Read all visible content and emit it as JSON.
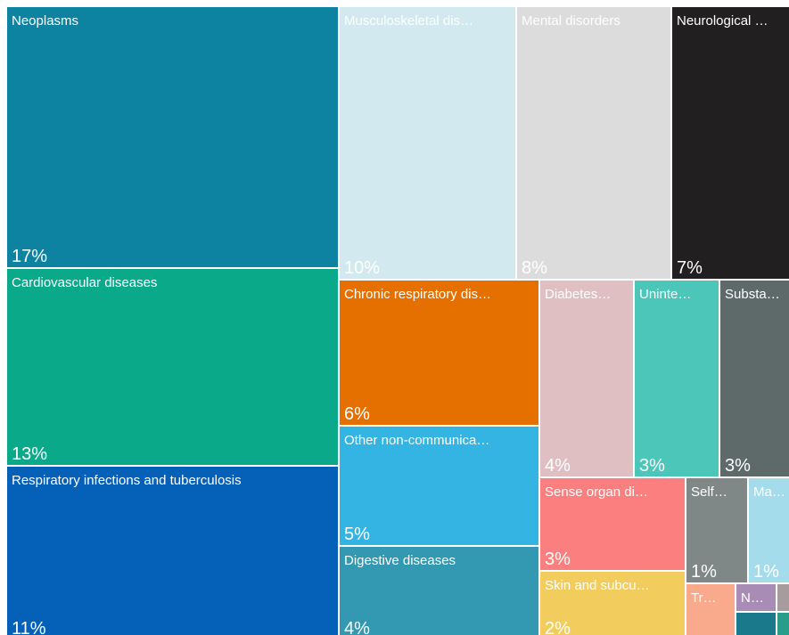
{
  "chart_data": {
    "type": "treemap",
    "categories": [
      "Neoplasms",
      "Cardiovascular diseases",
      "Respiratory infections and tuberculosis",
      "Musculoskeletal dis…",
      "Mental disorders",
      "Neurological …",
      "Chronic respiratory dis…",
      "Other non-communica…",
      "Digestive diseases",
      "Diabetes…",
      "Uninte…",
      "Substa…",
      "Sense organ di…",
      "Skin and subcu…",
      "Self…",
      "Ma…",
      "Tr…",
      "N…",
      null,
      null,
      null
    ],
    "values": [
      17,
      13,
      11,
      10,
      8,
      7,
      6,
      5,
      4,
      4,
      3,
      3,
      3,
      2,
      1,
      1,
      null,
      null,
      null,
      null,
      null
    ],
    "value_labels": [
      "17%",
      "13%",
      "11%",
      "10%",
      "8%",
      "7%",
      "6%",
      "5%",
      "4%",
      "4%",
      "3%",
      "3%",
      "3%",
      "2%",
      "1%",
      "1%",
      null,
      null,
      null,
      null,
      null
    ],
    "colors": [
      "#0d83a1",
      "#0aa98a",
      "#0560b8",
      "#d2e9f0",
      "#dcdcdc",
      "#221f20",
      "#e57000",
      "#33b4e2",
      "#3398b1",
      "#e0bfc2",
      "#4bc6b9",
      "#5e6a6a",
      "#fc7f7f",
      "#f2cd5e",
      "#7f8787",
      "#a5dcec",
      "#f9aa8c",
      "#a98cb5",
      "#a79b9d",
      "#1a7a8c",
      "#2a9d8a"
    ]
  }
}
